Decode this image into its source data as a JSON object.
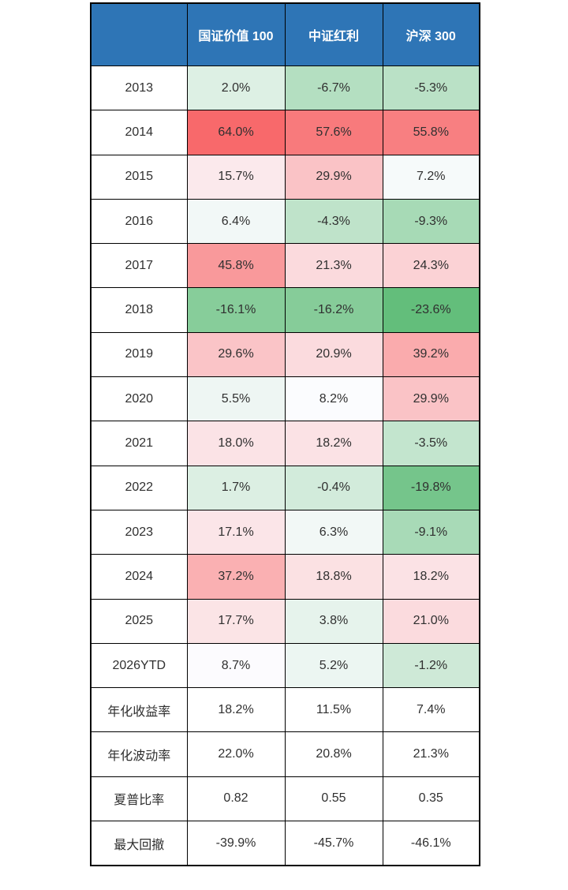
{
  "page": {
    "background": "#FFFFFF"
  },
  "style": {
    "header_bg": "#2E75B6",
    "header_text_color": "#FFFFFF",
    "border_color": "#000000",
    "body_text_color": "#303030",
    "row_label_bg": "#FFFFFF"
  },
  "chart_data": {
    "type": "table",
    "title": "",
    "corner_label": "",
    "columns": [
      "国证价值 100",
      "中证红利",
      "沪深 300"
    ],
    "colorscale": {
      "min_color": "#63BE7B",
      "mid_color": "#FCFCFF",
      "max_color": "#F8696B",
      "domain_percent": [
        -23.6,
        8.45,
        64.0
      ],
      "note": "green-white-red 3-color scale on yearly return cells"
    },
    "rows": [
      {
        "label": "2013",
        "values": [
          "2.0%",
          "-6.7%",
          "-5.3%"
        ],
        "bg": [
          "#DDF0E4",
          "#B4DFC1",
          "#BAE1C6"
        ]
      },
      {
        "label": "2014",
        "values": [
          "64.0%",
          "57.6%",
          "55.8%"
        ],
        "bg": [
          "#F8696B",
          "#F87A7C",
          "#F87F81"
        ]
      },
      {
        "label": "2015",
        "values": [
          "15.7%",
          "29.9%",
          "7.2%"
        ],
        "bg": [
          "#FBE9EC",
          "#FAC3C6",
          "#F6FAFA"
        ]
      },
      {
        "label": "2016",
        "values": [
          "6.4%",
          "-4.3%",
          "-9.3%"
        ],
        "bg": [
          "#F2F8F7",
          "#BFE3CA",
          "#A7DAB6"
        ]
      },
      {
        "label": "2017",
        "values": [
          "45.8%",
          "21.3%",
          "24.3%"
        ],
        "bg": [
          "#F9999B",
          "#FBDADD",
          "#FBD2D5"
        ]
      },
      {
        "label": "2018",
        "values": [
          "-16.1%",
          "-16.2%",
          "-23.6%"
        ],
        "bg": [
          "#87CD9A",
          "#86CC99",
          "#63BE7B"
        ]
      },
      {
        "label": "2019",
        "values": [
          "29.6%",
          "20.9%",
          "39.2%"
        ],
        "bg": [
          "#FAC4C7",
          "#FBDBDE",
          "#FAABAD"
        ]
      },
      {
        "label": "2020",
        "values": [
          "5.5%",
          "8.2%",
          "29.9%"
        ],
        "bg": [
          "#EEF6F3",
          "#FBFCFE",
          "#FAC3C6"
        ]
      },
      {
        "label": "2021",
        "values": [
          "18.0%",
          "18.2%",
          "-3.5%"
        ],
        "bg": [
          "#FBE3E6",
          "#FBE2E5",
          "#C3E5CE"
        ]
      },
      {
        "label": "2022",
        "values": [
          "1.7%",
          "-0.4%",
          "-19.8%"
        ],
        "bg": [
          "#DCEFE3",
          "#D2EBDB",
          "#75C58B"
        ]
      },
      {
        "label": "2023",
        "values": [
          "17.1%",
          "6.3%",
          "-9.1%"
        ],
        "bg": [
          "#FBE5E8",
          "#F2F8F6",
          "#A8DAB7"
        ]
      },
      {
        "label": "2024",
        "values": [
          "37.2%",
          "18.8%",
          "18.2%"
        ],
        "bg": [
          "#FAB0B2",
          "#FBE1E3",
          "#FBE2E5"
        ]
      },
      {
        "label": "2025",
        "values": [
          "17.7%",
          "3.8%",
          "21.0%"
        ],
        "bg": [
          "#FBE4E6",
          "#E6F3EC",
          "#FBDBDE"
        ]
      },
      {
        "label": "2026YTD",
        "values": [
          "8.7%",
          "5.2%",
          "-1.2%"
        ],
        "bg": [
          "#FCFBFE",
          "#ECF6F2",
          "#CEE9D7"
        ]
      },
      {
        "label": "年化收益率",
        "values": [
          "18.2%",
          "11.5%",
          "7.4%"
        ],
        "bg": [
          "#FFFFFF",
          "#FFFFFF",
          "#FFFFFF"
        ],
        "bold": [
          true,
          false,
          false
        ]
      },
      {
        "label": "年化波动率",
        "values": [
          "22.0%",
          "20.8%",
          "21.3%"
        ],
        "bg": [
          "#FFFFFF",
          "#FFFFFF",
          "#FFFFFF"
        ]
      },
      {
        "label": "夏普比率",
        "values": [
          "0.82",
          "0.55",
          "0.35"
        ],
        "bg": [
          "#FFFFFF",
          "#FFFFFF",
          "#FFFFFF"
        ],
        "bold": [
          true,
          false,
          false
        ]
      },
      {
        "label": "最大回撤",
        "values": [
          "-39.9%",
          "-45.7%",
          "-46.1%"
        ],
        "bg": [
          "#FFFFFF",
          "#FFFFFF",
          "#FFFFFF"
        ],
        "bold": [
          true,
          false,
          false
        ]
      }
    ]
  }
}
